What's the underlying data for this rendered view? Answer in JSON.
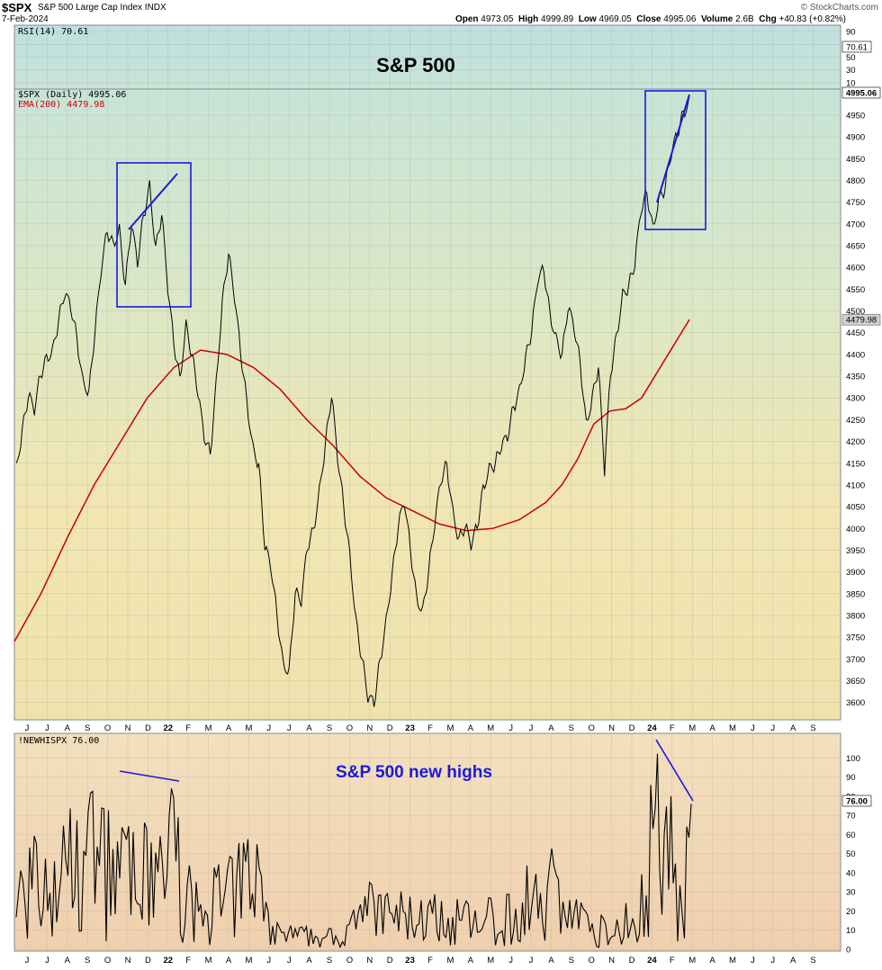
{
  "header": {
    "symbol": "$SPX",
    "description": "S&P 500 Large Cap Index  INDX",
    "date": "7-Feb-2024",
    "brand": "© StockCharts.com",
    "open_label": "Open",
    "open": "4973.05",
    "high_label": "High",
    "high": "4999.89",
    "low_label": "Low",
    "low": "4969.05",
    "close_label": "Close",
    "close": "4995.06",
    "volume_label": "Volume",
    "volume": "2.6B",
    "chg_label": "Chg",
    "chg": "+40.83 (+0.82%)"
  },
  "colors": {
    "price": "#000000",
    "ema": "#cc0000",
    "annotation": "#1a1adb",
    "grid": "#b8c4a8"
  },
  "chart_data": [
    {
      "type": "line",
      "panel": "rsi",
      "legend": "RSI(14) 70.61",
      "value": 70.61,
      "value_label": "70.61",
      "ylim": [
        0,
        100
      ],
      "yticks": [
        10,
        30,
        50,
        70,
        90
      ],
      "annotation": "S&P 500"
    },
    {
      "type": "line",
      "panel": "price",
      "legend_price": "$SPX (Daily) 4995.06",
      "legend_ema": "EMA(200) 4479.98",
      "last_price_label": "4995.06",
      "last_ema_label": "4479.98",
      "ylim": [
        3560,
        5010
      ],
      "yticks": [
        3600,
        3650,
        3700,
        3750,
        3800,
        3850,
        3900,
        3950,
        4000,
        4050,
        4100,
        4150,
        4200,
        4250,
        4300,
        4350,
        4400,
        4450,
        4500,
        4550,
        4600,
        4650,
        4700,
        4750,
        4800,
        4850,
        4900,
        4950
      ],
      "x_months": [
        "J",
        "J",
        "A",
        "S",
        "O",
        "N",
        "D",
        "22",
        "F",
        "M",
        "A",
        "M",
        "J",
        "J",
        "A",
        "S",
        "O",
        "N",
        "D",
        "23",
        "F",
        "M",
        "A",
        "M",
        "J",
        "J",
        "A",
        "S",
        "O",
        "N",
        "D",
        "24",
        "F",
        "M",
        "A",
        "M",
        "J",
        "J",
        "A",
        "S"
      ],
      "price_series": [
        [
          0,
          4150
        ],
        [
          1,
          4230
        ],
        [
          2,
          4300
        ],
        [
          3,
          4260
        ],
        [
          4,
          4350
        ],
        [
          5,
          4400
        ],
        [
          6,
          4420
        ],
        [
          7,
          4480
        ],
        [
          8,
          4530
        ],
        [
          9,
          4500
        ],
        [
          10,
          4440
        ],
        [
          11,
          4350
        ],
        [
          12,
          4320
        ],
        [
          13,
          4450
        ],
        [
          14,
          4580
        ],
        [
          15,
          4680
        ],
        [
          16,
          4660
        ],
        [
          17,
          4700
        ],
        [
          18,
          4560
        ],
        [
          19,
          4690
        ],
        [
          20,
          4600
        ],
        [
          21,
          4720
        ],
        [
          22,
          4800
        ],
        [
          23,
          4650
        ],
        [
          24,
          4720
        ],
        [
          25,
          4540
        ],
        [
          26,
          4420
        ],
        [
          27,
          4350
        ],
        [
          28,
          4480
        ],
        [
          29,
          4400
        ],
        [
          30,
          4300
        ],
        [
          31,
          4200
        ],
        [
          32,
          4170
        ],
        [
          33,
          4350
        ],
        [
          34,
          4530
        ],
        [
          35,
          4630
        ],
        [
          36,
          4520
        ],
        [
          37,
          4400
        ],
        [
          38,
          4300
        ],
        [
          39,
          4200
        ],
        [
          40,
          4150
        ],
        [
          41,
          3950
        ],
        [
          42,
          3900
        ],
        [
          43,
          3800
        ],
        [
          44,
          3700
        ],
        [
          45,
          3680
        ],
        [
          46,
          3850
        ],
        [
          47,
          3820
        ],
        [
          48,
          3950
        ],
        [
          49,
          4000
        ],
        [
          50,
          4100
        ],
        [
          51,
          4200
        ],
        [
          52,
          4300
        ],
        [
          53,
          4150
        ],
        [
          54,
          4050
        ],
        [
          55,
          3950
        ],
        [
          56,
          3800
        ],
        [
          57,
          3700
        ],
        [
          58,
          3600
        ],
        [
          59,
          3590
        ],
        [
          60,
          3700
        ],
        [
          61,
          3800
        ],
        [
          62,
          3900
        ],
        [
          63,
          4000
        ],
        [
          64,
          4050
        ],
        [
          65,
          3950
        ],
        [
          66,
          3850
        ],
        [
          67,
          3820
        ],
        [
          68,
          3900
        ],
        [
          69,
          4000
        ],
        [
          70,
          4100
        ],
        [
          71,
          4150
        ],
        [
          72,
          4050
        ],
        [
          73,
          3980
        ],
        [
          74,
          4000
        ],
        [
          75,
          3950
        ],
        [
          76,
          4000
        ],
        [
          77,
          4100
        ],
        [
          78,
          4150
        ],
        [
          79,
          4150
        ],
        [
          80,
          4180
        ],
        [
          81,
          4200
        ],
        [
          82,
          4280
        ],
        [
          83,
          4330
        ],
        [
          84,
          4400
        ],
        [
          85,
          4450
        ],
        [
          86,
          4560
        ],
        [
          87,
          4590
        ],
        [
          88,
          4500
        ],
        [
          89,
          4450
        ],
        [
          90,
          4400
        ],
        [
          91,
          4500
        ],
        [
          92,
          4450
        ],
        [
          93,
          4380
        ],
        [
          94,
          4250
        ],
        [
          95,
          4310
        ],
        [
          96,
          4370
        ],
        [
          97,
          4120
        ],
        [
          98,
          4350
        ],
        [
          99,
          4450
        ],
        [
          100,
          4550
        ],
        [
          101,
          4560
        ],
        [
          102,
          4600
        ],
        [
          103,
          4720
        ],
        [
          104,
          4770
        ],
        [
          105,
          4700
        ],
        [
          106,
          4770
        ],
        [
          107,
          4780
        ],
        [
          108,
          4850
        ],
        [
          109,
          4900
        ],
        [
          110,
          4960
        ],
        [
          111,
          4995
        ]
      ],
      "ema_series": [
        [
          0,
          3740
        ],
        [
          5,
          3850
        ],
        [
          10,
          3980
        ],
        [
          15,
          4100
        ],
        [
          20,
          4200
        ],
        [
          25,
          4300
        ],
        [
          30,
          4370
        ],
        [
          35,
          4410
        ],
        [
          40,
          4400
        ],
        [
          45,
          4370
        ],
        [
          50,
          4320
        ],
        [
          55,
          4250
        ],
        [
          60,
          4190
        ],
        [
          65,
          4120
        ],
        [
          70,
          4070
        ],
        [
          75,
          4040
        ],
        [
          80,
          4010
        ],
        [
          85,
          3995
        ],
        [
          90,
          4000
        ],
        [
          95,
          4020
        ],
        [
          100,
          4060
        ],
        [
          103,
          4100
        ],
        [
          106,
          4160
        ],
        [
          109,
          4240
        ],
        [
          112,
          4270
        ],
        [
          115,
          4275
        ],
        [
          118,
          4300
        ],
        [
          121,
          4360
        ],
        [
          124,
          4420
        ],
        [
          127,
          4480
        ]
      ]
    },
    {
      "type": "line",
      "panel": "new_highs",
      "legend": "!NEWHISPX 76.00",
      "last_value_label": "76.00",
      "ylim": [
        0,
        110
      ],
      "yticks": [
        0,
        10,
        20,
        30,
        40,
        50,
        60,
        70,
        80,
        90,
        100
      ],
      "annotation": "S&P 500 new highs",
      "x_months": [
        "J",
        "J",
        "A",
        "S",
        "O",
        "N",
        "D",
        "22",
        "F",
        "M",
        "A",
        "M",
        "J",
        "J",
        "A",
        "S",
        "O",
        "N",
        "D",
        "23",
        "F",
        "M",
        "A",
        "M",
        "J",
        "J",
        "A",
        "S",
        "O",
        "N",
        "D",
        "24",
        "F",
        "M",
        "A",
        "M",
        "J",
        "J",
        "A",
        "S"
      ]
    }
  ]
}
